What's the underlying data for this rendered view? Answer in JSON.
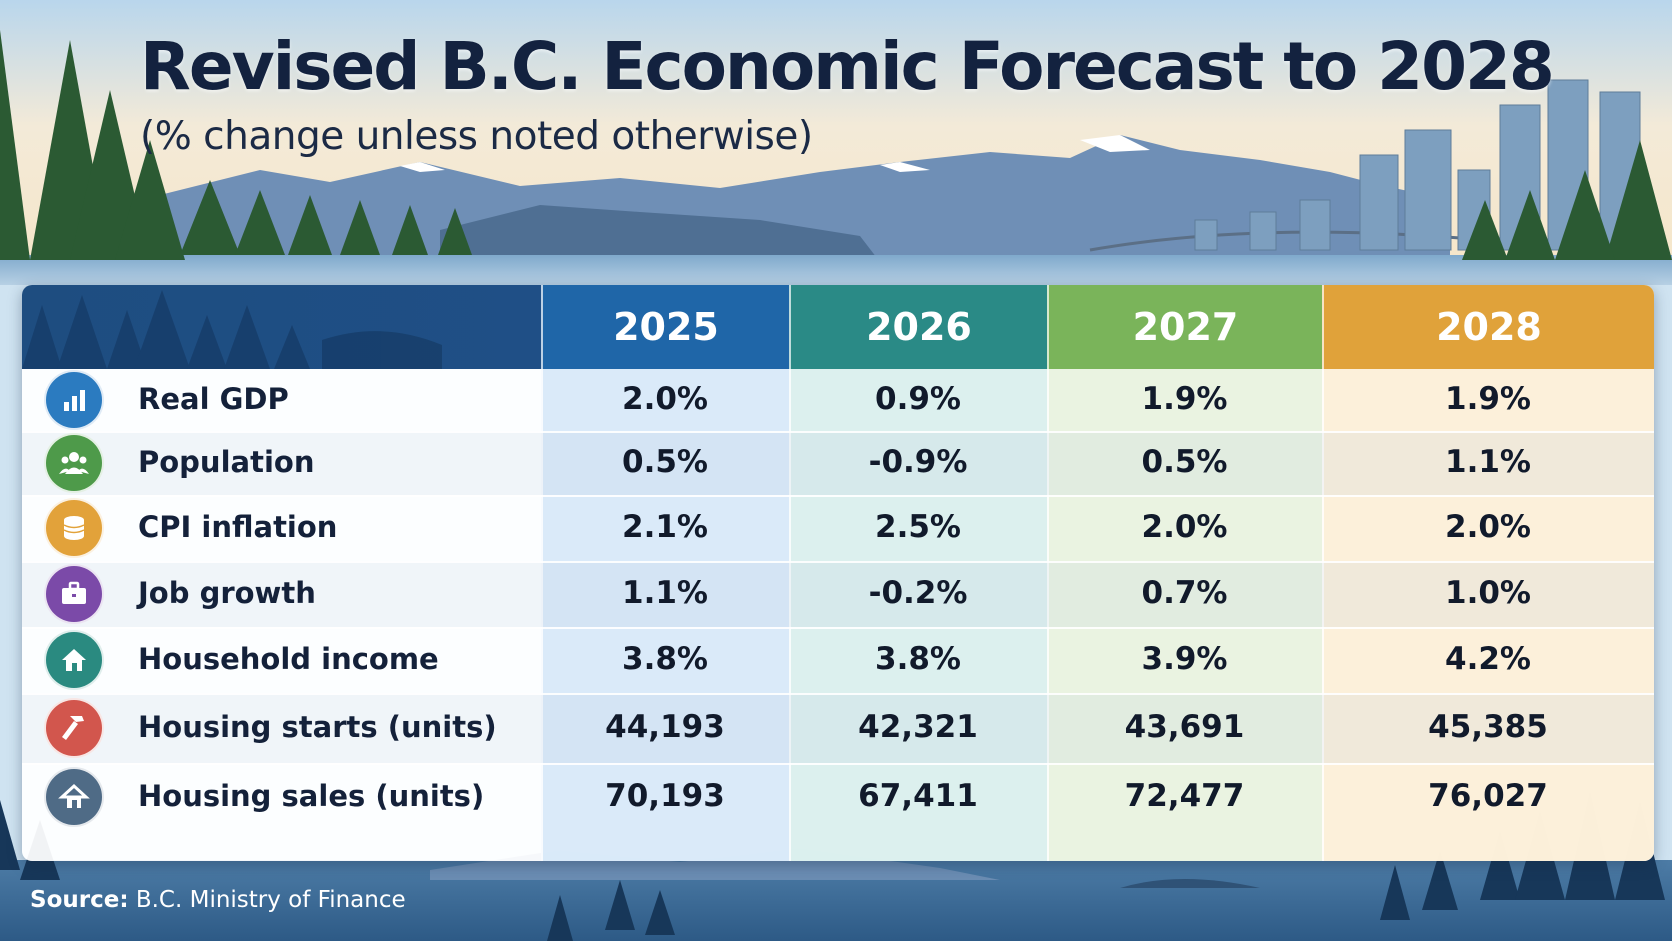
{
  "title": "Revised B.C. Economic Forecast to 2028",
  "subtitle": "(% change unless noted otherwise)",
  "source_label": "Source:",
  "source_text": "B.C. Ministry of Finance",
  "colors": {
    "title": "#13223f",
    "header_left": "#1f4f86",
    "col_2025": "#1f66a8",
    "col_2026": "#2a8a86",
    "col_2027": "#7ab45a",
    "col_2028": "#e0a23a"
  },
  "chart_data": {
    "type": "table",
    "title": "Revised B.C. Economic Forecast to 2028",
    "subtitle": "(% change unless noted otherwise)",
    "columns": [
      "2025",
      "2026",
      "2027",
      "2028"
    ],
    "rows": [
      {
        "label": "Real GDP",
        "icon": "bar-chart-icon",
        "icon_color": "#2b7bc0",
        "values": [
          "2.0%",
          "0.9%",
          "1.9%",
          "1.9%"
        ]
      },
      {
        "label": "Population",
        "icon": "people-icon",
        "icon_color": "#4e9a4a",
        "values": [
          "0.5%",
          "-0.9%",
          "0.5%",
          "1.1%"
        ]
      },
      {
        "label": "CPI inflation",
        "icon": "coins-icon",
        "icon_color": "#e2a23a",
        "values": [
          "2.1%",
          "2.5%",
          "2.0%",
          "2.0%"
        ]
      },
      {
        "label": "Job growth",
        "icon": "briefcase-icon",
        "icon_color": "#7b4aa8",
        "values": [
          "1.1%",
          "-0.2%",
          "0.7%",
          "1.0%"
        ]
      },
      {
        "label": "Household income",
        "icon": "house-icon",
        "icon_color": "#2a8a80",
        "values": [
          "3.8%",
          "3.8%",
          "3.9%",
          "4.2%"
        ]
      },
      {
        "label": "Housing starts (units)",
        "icon": "hammer-icon",
        "icon_color": "#d2564d",
        "values": [
          "44,193",
          "42,321",
          "43,691",
          "45,385"
        ]
      },
      {
        "label": "Housing sales (units)",
        "icon": "home-sales-icon",
        "icon_color": "#4f6b86",
        "values": [
          "70,193",
          "67,411",
          "72,477",
          "76,027"
        ]
      }
    ]
  }
}
